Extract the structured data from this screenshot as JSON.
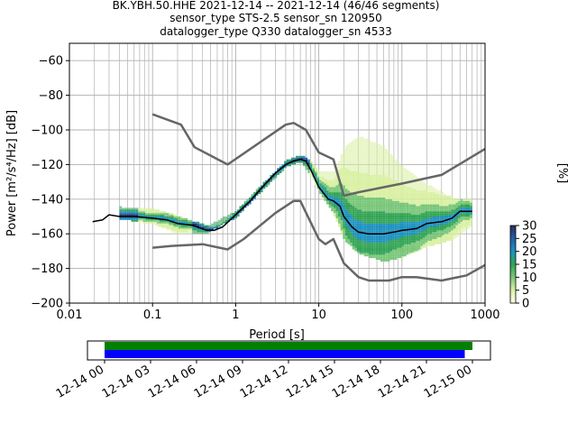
{
  "figure": {
    "title_line1": "BK.YBH.50.HHE   2021-12-14 -- 2021-12-14  (46/46 segments)",
    "title_line2": "sensor_type STS-2.5 sensor_sn 120950",
    "title_line3": "datalogger_type Q330 datalogger_sn 4533"
  },
  "chart_data": [
    {
      "type": "heatmap",
      "title": "BK.YBH.50.HHE   2021-12-14 -- 2021-12-14  (46/46 segments)",
      "xlabel": "Period [s]",
      "ylabel": "Power [m²/s⁴/Hz] [dB]",
      "xscale": "log",
      "xlim": [
        0.01,
        1000
      ],
      "ylim": [
        -200,
        -50
      ],
      "x_ticks": [
        0.01,
        0.1,
        1,
        10,
        100,
        1000
      ],
      "x_tick_labels": [
        "0.01",
        "0.1",
        "1",
        "10",
        "100",
        "1000"
      ],
      "y_ticks": [
        -60,
        -80,
        -100,
        -120,
        -140,
        -160,
        -180,
        -200
      ],
      "y_tick_labels": [
        "−60",
        "−80",
        "−100",
        "−120",
        "−140",
        "−160",
        "−180",
        "−200"
      ],
      "grid": true,
      "colorbar": {
        "label": "[%]",
        "range": [
          0,
          30
        ],
        "ticks": [
          0,
          5,
          10,
          15,
          20,
          25,
          30
        ],
        "tick_labels": [
          "0",
          "5",
          "10",
          "15",
          "20",
          "25",
          "30"
        ],
        "colormap": [
          "#fffee5",
          "#d9f0a3",
          "#78c679",
          "#31a354",
          "#1d91c0",
          "#225ea8",
          "#2c2d54"
        ]
      },
      "series": [
        {
          "role": "new-high-noise-model",
          "color": "#666666",
          "points": [
            [
              0.1,
              -91
            ],
            [
              0.22,
              -97
            ],
            [
              0.32,
              -110
            ],
            [
              0.8,
              -120
            ],
            [
              4.0,
              -97
            ],
            [
              5.0,
              -96
            ],
            [
              7.0,
              -100
            ],
            [
              10.0,
              -113
            ],
            [
              15.0,
              -117
            ],
            [
              20.0,
              -138
            ],
            [
              30.0,
              -136
            ],
            [
              100.0,
              -131
            ],
            [
              300.0,
              -126
            ],
            [
              1000.0,
              -111
            ]
          ]
        },
        {
          "role": "new-low-noise-model",
          "color": "#666666",
          "points": [
            [
              0.1,
              -168
            ],
            [
              0.17,
              -167
            ],
            [
              0.4,
              -166
            ],
            [
              0.8,
              -169
            ],
            [
              1.25,
              -163
            ],
            [
              3.0,
              -148
            ],
            [
              5.0,
              -141
            ],
            [
              6.0,
              -141
            ],
            [
              10.0,
              -163
            ],
            [
              12.0,
              -166
            ],
            [
              15.0,
              -163
            ],
            [
              20.0,
              -177
            ],
            [
              30.0,
              -185
            ],
            [
              40.0,
              -187
            ],
            [
              70.0,
              -187
            ],
            [
              100.0,
              -185
            ],
            [
              150.0,
              -185
            ],
            [
              300.0,
              -187
            ],
            [
              600.0,
              -184
            ],
            [
              1000.0,
              -178
            ]
          ]
        },
        {
          "role": "mean-psd",
          "color": "#000000",
          "points": [
            [
              0.019,
              -153
            ],
            [
              0.025,
              -152
            ],
            [
              0.03,
              -149
            ],
            [
              0.04,
              -150
            ],
            [
              0.06,
              -150
            ],
            [
              0.1,
              -151
            ],
            [
              0.15,
              -152
            ],
            [
              0.2,
              -154
            ],
            [
              0.3,
              -155
            ],
            [
              0.45,
              -158
            ],
            [
              0.55,
              -158
            ],
            [
              0.7,
              -156
            ],
            [
              1.0,
              -149
            ],
            [
              1.5,
              -141
            ],
            [
              2.0,
              -134
            ],
            [
              3.0,
              -125
            ],
            [
              4.0,
              -120
            ],
            [
              5.0,
              -118
            ],
            [
              6.0,
              -117
            ],
            [
              7.0,
              -118
            ],
            [
              8.0,
              -123
            ],
            [
              10.0,
              -133
            ],
            [
              13.0,
              -140
            ],
            [
              15.0,
              -141
            ],
            [
              18.0,
              -144
            ],
            [
              20.0,
              -150
            ],
            [
              25.0,
              -156
            ],
            [
              30.0,
              -159
            ],
            [
              40.0,
              -160
            ],
            [
              60.0,
              -160
            ],
            [
              80.0,
              -159
            ],
            [
              100.0,
              -158
            ],
            [
              150.0,
              -157
            ],
            [
              200.0,
              -154
            ],
            [
              300.0,
              -153
            ],
            [
              400.0,
              -151
            ],
            [
              500.0,
              -147
            ],
            [
              700.0,
              -147
            ]
          ]
        }
      ],
      "psd_band": {
        "upper": [
          [
            0.04,
            -145
          ],
          [
            0.1,
            -146
          ],
          [
            0.2,
            -150
          ],
          [
            0.45,
            -156
          ],
          [
            1.0,
            -147
          ],
          [
            2.0,
            -132
          ],
          [
            4.0,
            -118
          ],
          [
            6.0,
            -115
          ],
          [
            8.0,
            -119
          ],
          [
            10.0,
            -125
          ],
          [
            15.0,
            -125
          ],
          [
            20.0,
            -110
          ],
          [
            30.0,
            -104
          ],
          [
            60.0,
            -110
          ],
          [
            100.0,
            -122
          ],
          [
            200.0,
            -132
          ],
          [
            400.0,
            -140
          ],
          [
            700.0,
            -141
          ]
        ],
        "lower": [
          [
            0.04,
            -152
          ],
          [
            0.1,
            -155
          ],
          [
            0.2,
            -161
          ],
          [
            0.45,
            -160
          ],
          [
            1.0,
            -151
          ],
          [
            2.0,
            -136
          ],
          [
            4.0,
            -122
          ],
          [
            6.0,
            -119
          ],
          [
            8.0,
            -128
          ],
          [
            10.0,
            -137
          ],
          [
            15.0,
            -150
          ],
          [
            20.0,
            -165
          ],
          [
            30.0,
            -172
          ],
          [
            60.0,
            -177
          ],
          [
            100.0,
            -174
          ],
          [
            200.0,
            -168
          ],
          [
            400.0,
            -164
          ],
          [
            700.0,
            -156
          ]
        ]
      }
    },
    {
      "type": "timeline",
      "x_tick_labels": [
        "12-14 00",
        "12-14 03",
        "12-14 06",
        "12-14 09",
        "12-14 12",
        "12-14 15",
        "12-14 18",
        "12-14 21",
        "12-15 00"
      ],
      "bars": [
        {
          "role": "data-coverage",
          "color": "#008000",
          "start_hours": 0,
          "end_hours": 24
        },
        {
          "role": "psd-coverage",
          "color": "#0000ff",
          "start_hours": 0,
          "end_hours": 23.5
        }
      ]
    }
  ]
}
